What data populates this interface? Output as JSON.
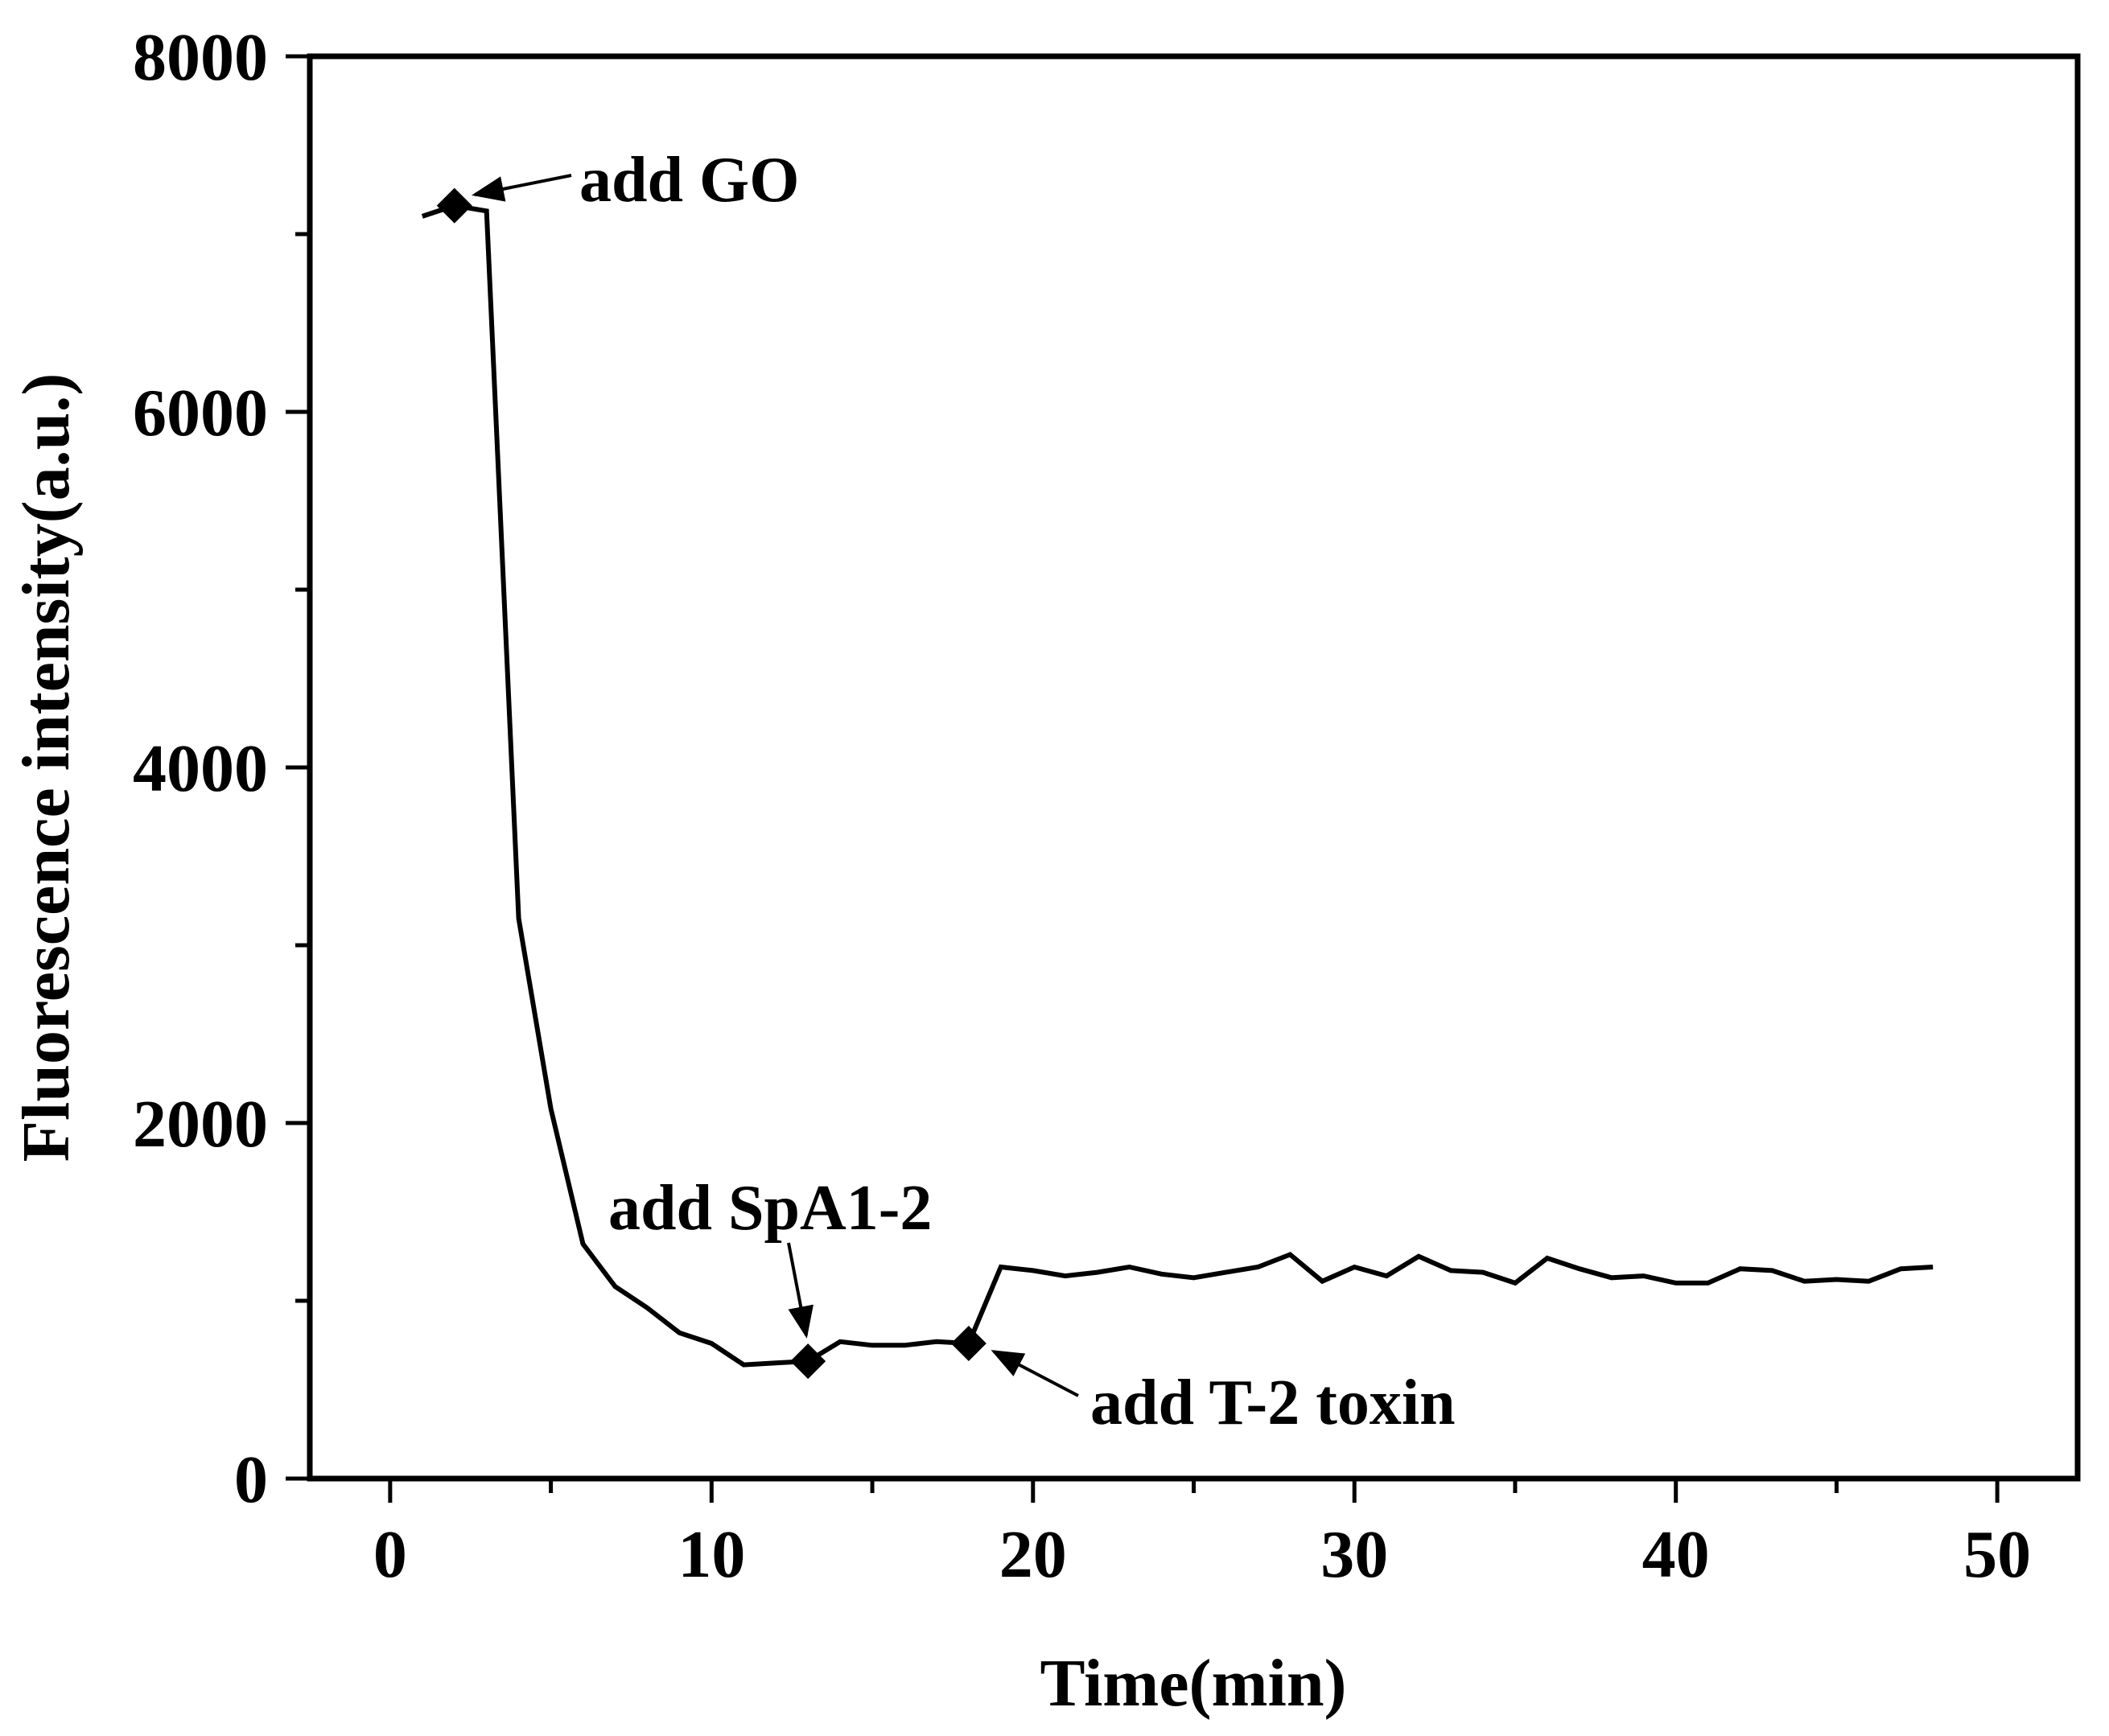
{
  "chart_data": {
    "type": "line",
    "title": "",
    "xlabel": "Time(min)",
    "ylabel": "Fluorescence intensity(a.u.)",
    "xlim": [
      -2.5,
      52.5
    ],
    "ylim": [
      0,
      8000
    ],
    "x_ticks": [
      0,
      10,
      20,
      30,
      40,
      50
    ],
    "y_ticks": [
      0,
      2000,
      4000,
      6000,
      8000
    ],
    "grid": false,
    "legend": "none",
    "line_color": "#000000",
    "series": [
      {
        "x": [
          1,
          2,
          3,
          4,
          5,
          6,
          7,
          8,
          9,
          10,
          11,
          12,
          13,
          14,
          15,
          16,
          17,
          18,
          19,
          20,
          21,
          22,
          23,
          24,
          25,
          26,
          27,
          28,
          29,
          30,
          31,
          32,
          33,
          34,
          35,
          36,
          37,
          38,
          39,
          40,
          41,
          42,
          43,
          44,
          45,
          46,
          47,
          48
        ],
        "y": [
          7100,
          7160,
          7130,
          3150,
          2080,
          1320,
          1080,
          960,
          820,
          760,
          640,
          650,
          660,
          770,
          750,
          750,
          770,
          760,
          1190,
          1170,
          1140,
          1160,
          1190,
          1150,
          1130,
          1160,
          1190,
          1260,
          1110,
          1190,
          1140,
          1250,
          1170,
          1160,
          1100,
          1240,
          1180,
          1130,
          1140,
          1100,
          1100,
          1180,
          1170,
          1110,
          1120,
          1110,
          1180,
          1190
        ]
      }
    ],
    "markers": [
      {
        "x": 2,
        "y": 7160
      },
      {
        "x": 13,
        "y": 660
      },
      {
        "x": 18,
        "y": 760
      }
    ],
    "annotations": [
      {
        "text": "add GO"
      },
      {
        "text": "add SpA1-2"
      },
      {
        "text": "add T-2 toxin"
      }
    ]
  }
}
